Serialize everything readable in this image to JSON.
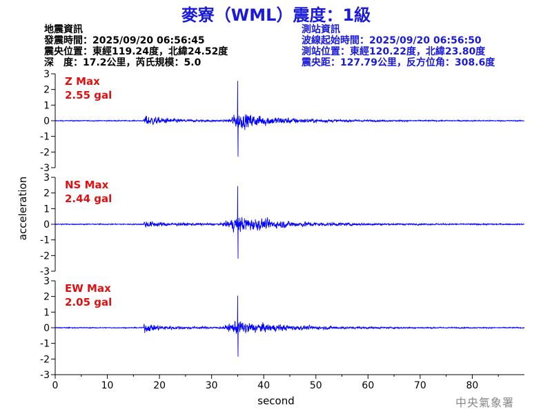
{
  "title": "麥寮（WML）震度：1級",
  "quake_info": {
    "heading": "地震資訊",
    "time_label": "發震時間：2025/09/20 06:56:45",
    "epicenter_label": "震央位置：東經119.24度，北緯24.52度",
    "depth_label": "深　度：17.2公里，芮氏規模：5.0"
  },
  "station_info": {
    "heading": "測站資訊",
    "wave_start_label": "波線起始時間：2025/09/20 06:56:50",
    "station_location_label": "測站位置：東經120.22度，北緯23.80度",
    "distance_label": "震央距：127.79公里，反方位角：308.6度"
  },
  "footer": "中央氣象署",
  "chart_data": {
    "type": "line",
    "xlabel": "second",
    "ylabel": "acceleration",
    "xlim": [
      0,
      90
    ],
    "x_ticks": [
      "0",
      "10",
      "20",
      "30",
      "40",
      "50",
      "60",
      "70",
      "80"
    ],
    "y_ticks": [
      "3",
      "2",
      "1",
      "0",
      "-1",
      "-2",
      "-3"
    ],
    "ylim": [
      -3,
      3
    ],
    "line_color": "#0000ff",
    "label_color": "#e01010",
    "panels": [
      {
        "name": "Z Max",
        "max_label": "2.55 gal",
        "peak": 2.55,
        "noise": 0.07,
        "p_arrival": 17,
        "p_amp": 0.75,
        "s_arrival": 33,
        "s_peak_time": 35,
        "s_amp": 2.4,
        "coda_tau": 8
      },
      {
        "name": "NS Max",
        "max_label": "2.44 gal",
        "peak": 2.44,
        "noise": 0.08,
        "p_arrival": 17,
        "p_amp": 0.4,
        "s_arrival": 32,
        "s_peak_time": 35,
        "s_amp": 2.3,
        "coda_tau": 9
      },
      {
        "name": "EW Max",
        "max_label": "2.05 gal",
        "peak": 2.05,
        "noise": 0.07,
        "p_arrival": 17,
        "p_amp": 0.5,
        "s_arrival": 32,
        "s_peak_time": 35,
        "s_amp": 1.9,
        "coda_tau": 9
      }
    ]
  }
}
